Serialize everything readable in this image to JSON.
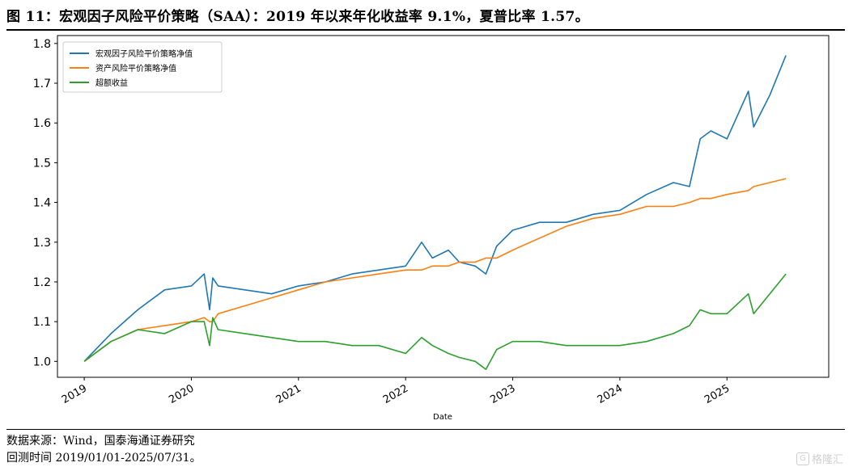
{
  "figure": {
    "title": "图 11：宏观因子风险平价策略（SAA）：2019 年以来年化收益率 9.1%，夏普比率 1.57。",
    "source_line": "数据来源：Wind，国泰海通证券研究",
    "period_line": "回测时间 2019/01/01-2025/07/31。",
    "watermark": "格隆汇",
    "watermark_mark": "G"
  },
  "chart_data": {
    "type": "line",
    "xlabel": "Date",
    "ylabel": "",
    "x_ticks": [
      "2019",
      "2020",
      "2021",
      "2022",
      "2023",
      "2024",
      "2025"
    ],
    "y_ticks": [
      "1.0",
      "1.1",
      "1.2",
      "1.3",
      "1.4",
      "1.5",
      "1.6",
      "1.7",
      "1.8"
    ],
    "xlim": [
      2018.75,
      2025.95
    ],
    "ylim": [
      0.96,
      1.82
    ],
    "legend_position": "upper-left",
    "grid": false,
    "x": [
      2019.0,
      2019.25,
      2019.5,
      2019.75,
      2020.0,
      2020.12,
      2020.17,
      2020.2,
      2020.25,
      2020.5,
      2020.75,
      2021.0,
      2021.25,
      2021.5,
      2021.75,
      2022.0,
      2022.15,
      2022.25,
      2022.4,
      2022.5,
      2022.65,
      2022.75,
      2022.85,
      2023.0,
      2023.25,
      2023.5,
      2023.75,
      2024.0,
      2024.25,
      2024.5,
      2024.65,
      2024.75,
      2024.85,
      2025.0,
      2025.2,
      2025.25,
      2025.4,
      2025.55
    ],
    "series": [
      {
        "name": "宏观因子风险平价策略净值",
        "color": "#1f77b4",
        "values": [
          1.0,
          1.07,
          1.13,
          1.18,
          1.19,
          1.22,
          1.13,
          1.21,
          1.19,
          1.18,
          1.17,
          1.19,
          1.2,
          1.22,
          1.23,
          1.24,
          1.3,
          1.26,
          1.28,
          1.25,
          1.24,
          1.22,
          1.29,
          1.33,
          1.35,
          1.35,
          1.37,
          1.38,
          1.42,
          1.45,
          1.44,
          1.56,
          1.58,
          1.56,
          1.68,
          1.59,
          1.67,
          1.77
        ]
      },
      {
        "name": "资产风险平价策略净值",
        "color": "#ff7f0e",
        "values": [
          1.0,
          1.05,
          1.08,
          1.09,
          1.1,
          1.11,
          1.1,
          1.1,
          1.12,
          1.14,
          1.16,
          1.18,
          1.2,
          1.21,
          1.22,
          1.23,
          1.23,
          1.24,
          1.24,
          1.25,
          1.25,
          1.26,
          1.26,
          1.28,
          1.31,
          1.34,
          1.36,
          1.37,
          1.39,
          1.39,
          1.4,
          1.41,
          1.41,
          1.42,
          1.43,
          1.44,
          1.45,
          1.46
        ]
      },
      {
        "name": "超额收益",
        "color": "#2ca02c",
        "values": [
          1.0,
          1.05,
          1.08,
          1.07,
          1.1,
          1.1,
          1.04,
          1.11,
          1.08,
          1.07,
          1.06,
          1.05,
          1.05,
          1.04,
          1.04,
          1.02,
          1.06,
          1.04,
          1.02,
          1.01,
          1.0,
          0.98,
          1.03,
          1.05,
          1.05,
          1.04,
          1.04,
          1.04,
          1.05,
          1.07,
          1.09,
          1.13,
          1.12,
          1.12,
          1.17,
          1.12,
          1.17,
          1.22
        ]
      }
    ]
  }
}
